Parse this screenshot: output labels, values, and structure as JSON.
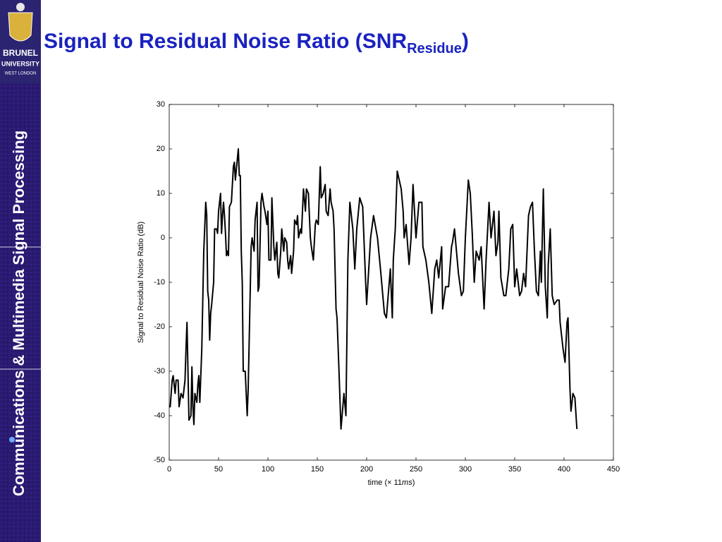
{
  "slide": {
    "sidebar_text": "Communications & Multimedia Signal Processing",
    "logo": [
      "BRUNEL",
      "UNIVERSITY",
      "WEST LONDON"
    ]
  },
  "chart_data": {
    "type": "line",
    "title": "Signal to Residual Noise Ratio (SNR",
    "title_subscript": "Residue",
    "title_end": ")",
    "x_label": "time (× 11",
    "x_label_italic": "ms",
    "x_label_end": ")",
    "y_label": "Signal to Residual Noise Ratio (dB)",
    "xlim": [
      0,
      450
    ],
    "xticks": [
      0,
      50,
      100,
      150,
      200,
      250,
      300,
      350,
      400,
      450
    ],
    "ylim": [
      -50,
      30
    ],
    "yticks": [
      -50,
      -40,
      -30,
      -20,
      -10,
      0,
      10,
      20,
      30
    ],
    "series": [
      {
        "color": "#000000",
        "x": [
          0,
          1,
          3,
          4,
          6,
          7,
          9,
          10,
          12,
          14,
          16,
          17,
          18,
          19,
          20,
          22,
          23,
          24,
          25,
          26,
          28,
          29,
          30,
          31,
          33,
          35,
          37,
          38,
          39,
          40,
          41,
          42,
          43,
          45,
          46,
          48,
          49,
          50,
          52,
          53,
          54,
          55,
          56,
          57,
          58,
          59,
          60,
          61,
          63,
          65,
          66,
          67,
          70,
          71,
          72,
          73,
          74,
          75,
          77,
          79,
          80,
          83,
          84,
          86,
          87,
          89,
          90,
          91,
          93,
          94,
          96,
          97,
          99,
          100,
          101,
          103,
          104,
          106,
          107,
          109,
          110,
          111,
          113,
          114,
          116,
          117,
          119,
          120,
          121,
          123,
          124,
          126,
          127,
          129,
          130,
          131,
          133,
          134,
          136,
          138,
          139,
          141,
          143,
          144,
          146,
          148,
          149,
          151,
          153,
          154,
          156,
          158,
          159,
          161,
          163,
          164,
          166,
          167,
          169,
          170,
          172,
          174,
          177,
          179,
          181,
          183,
          186,
          188,
          190,
          193,
          196,
          199,
          200,
          204,
          207,
          211,
          214,
          218,
          220,
          224,
          226,
          227,
          229,
          231,
          233,
          235,
          237,
          238,
          240,
          243,
          245,
          247,
          250,
          253,
          256,
          257,
          260,
          263,
          266,
          269,
          271,
          273,
          276,
          277,
          280,
          283,
          286,
          287,
          289,
          293,
          296,
          298,
          300,
          303,
          305,
          307,
          309,
          311,
          314,
          316,
          319,
          321,
          324,
          326,
          329,
          331,
          333,
          334,
          336,
          339,
          341,
          344,
          346,
          348,
          350,
          352,
          355,
          357,
          359,
          361,
          364,
          366,
          368,
          370,
          372,
          374,
          376,
          377,
          379,
          381,
          383,
          384,
          386,
          388,
          390,
          393,
          395,
          396,
          399,
          401,
          403,
          404,
          406,
          407,
          409,
          411,
          413
        ],
        "values": [
          -38,
          -38,
          -32,
          -31,
          -35,
          -32,
          -32,
          -38,
          -35,
          -36,
          -32,
          -25,
          -19,
          -30,
          -41,
          -40,
          -29,
          -38,
          -42,
          -35,
          -37,
          -33,
          -31,
          -37,
          -25,
          -3,
          8,
          5,
          -12,
          -14,
          -23,
          -17,
          -15,
          -10,
          2,
          2,
          1,
          6,
          10,
          1,
          5,
          8,
          5,
          1,
          -4,
          -3,
          -4,
          7,
          8,
          16,
          17,
          13,
          20,
          14,
          14,
          -3,
          -10,
          -30,
          -30,
          -40,
          -34,
          -2,
          0,
          -3,
          4,
          8,
          -12,
          -11,
          8,
          10,
          7,
          6,
          3,
          6,
          -5,
          -5,
          9,
          -2,
          -5,
          -1,
          -8,
          -9,
          -3,
          2,
          -3,
          0,
          -1,
          -5,
          -7,
          -4,
          -8,
          -3,
          4,
          3,
          5,
          0,
          2,
          1,
          11,
          6,
          11,
          10,
          0,
          -2,
          -5,
          3,
          4,
          3,
          16,
          9,
          10,
          12,
          6,
          5,
          11,
          8,
          6,
          2,
          -16,
          -18,
          -30,
          -43,
          -35,
          -40,
          -5,
          8,
          2,
          -7,
          2,
          9,
          7,
          -10,
          -15,
          0,
          5,
          0,
          -7,
          -17,
          -18,
          -7,
          -18,
          -5,
          2,
          15,
          13,
          11,
          6,
          0,
          3,
          -6,
          0,
          12,
          0,
          8,
          8,
          -2,
          -5,
          -10,
          -17,
          -7,
          -5,
          -9,
          -2,
          -16,
          -11,
          -11,
          -2,
          -1,
          2,
          -8,
          -13,
          -12,
          0,
          13,
          10,
          1,
          -10,
          -3,
          -5,
          -2,
          -16,
          -5,
          8,
          0,
          6,
          -4,
          -1,
          6,
          -9,
          -13,
          -13,
          -7,
          2,
          3,
          -11,
          -7,
          -13,
          -12,
          -8,
          -11,
          5,
          7,
          8,
          -3,
          -12,
          -13,
          -3,
          -10,
          11,
          -11,
          -18,
          -6,
          2,
          -13,
          -15,
          -14,
          -14,
          -19,
          -25,
          -28,
          -19,
          -18,
          -34,
          -39,
          -35,
          -36,
          -43
        ]
      }
    ]
  }
}
